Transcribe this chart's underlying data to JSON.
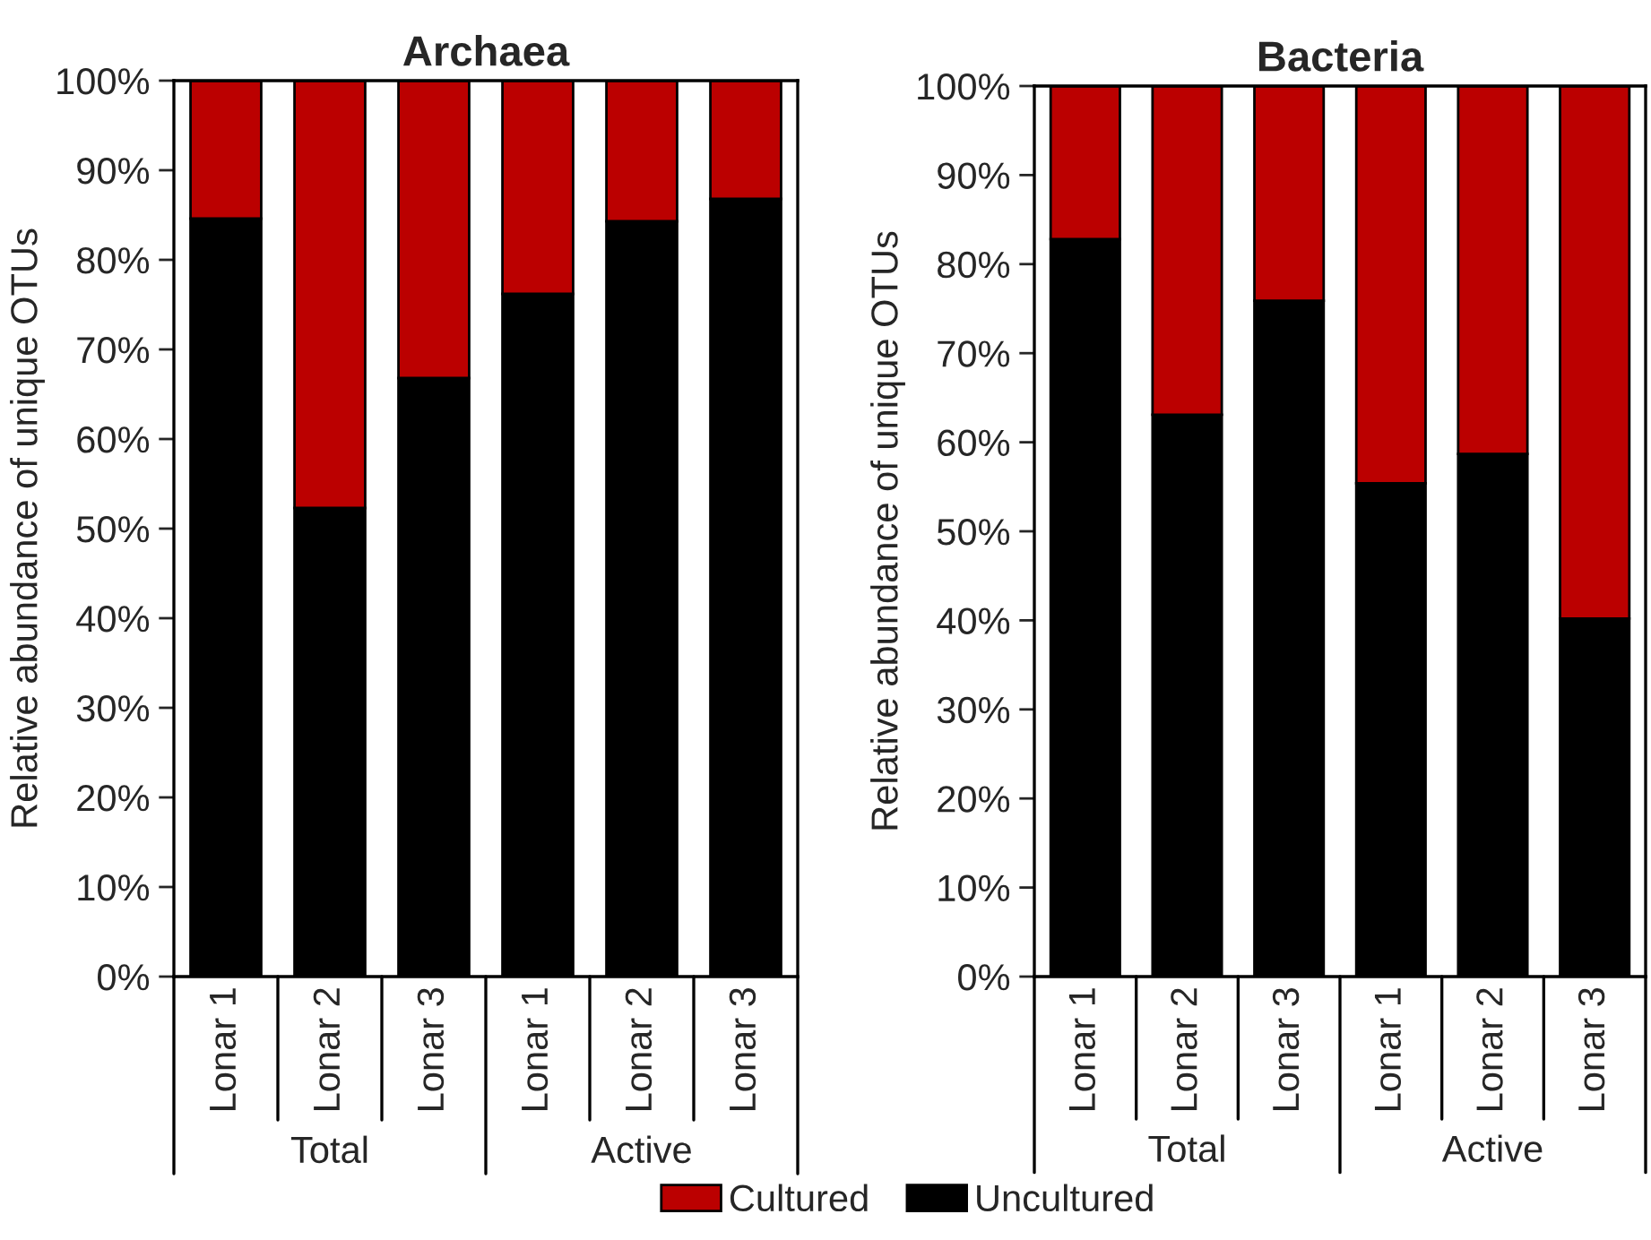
{
  "chart_data": [
    {
      "type": "bar",
      "title": "Archaea",
      "ylabel": "Relative abundance of unique OTUs",
      "stacked": true,
      "grid": false,
      "categories": [
        "Lonar 1",
        "Lonar 2",
        "Lonar 3",
        "Lonar 1",
        "Lonar 2",
        "Lonar 3"
      ],
      "series": [
        {
          "color": "#000000",
          "values": [
            84.6,
            52.3,
            66.8,
            76.2,
            84.3,
            86.8
          ]
        },
        {
          "color": "#bb0000",
          "values": [
            15.4,
            47.7,
            33.2,
            23.8,
            15.7,
            13.2
          ]
        }
      ],
      "ylim": [
        0,
        100
      ],
      "yticks": [
        {
          "value": 0,
          "label": "0%"
        },
        {
          "value": 10,
          "label": "10%"
        },
        {
          "value": 20,
          "label": "20%"
        },
        {
          "value": 30,
          "label": "30%"
        },
        {
          "value": 40,
          "label": "40%"
        },
        {
          "value": 50,
          "label": "50%"
        },
        {
          "value": 60,
          "label": "60%"
        },
        {
          "value": 70,
          "label": "70%"
        },
        {
          "value": 80,
          "label": "80%"
        },
        {
          "value": 90,
          "label": "90%"
        },
        {
          "value": 100,
          "label": "100%"
        }
      ],
      "annotations": [
        "Total",
        "Active"
      ]
    },
    {
      "type": "bar",
      "title": "Bacteria",
      "ylabel": "Relative abundance of unique OTUs",
      "stacked": true,
      "legend": "bottom",
      "grid": false,
      "categories": [
        "Lonar 1",
        "Lonar 2",
        "Lonar 3",
        "Lonar 1",
        "Lonar 2",
        "Lonar 3"
      ],
      "series": [
        {
          "name": "Uncultured",
          "color": "#000000",
          "values": [
            82.8,
            63.1,
            75.9,
            55.4,
            58.7,
            40.2
          ]
        },
        {
          "name": "Cultured",
          "color": "#bb0000",
          "values": [
            17.2,
            36.9,
            24.1,
            44.6,
            41.3,
            59.8
          ]
        }
      ],
      "ylim": [
        0,
        100
      ],
      "yticks": [
        {
          "value": 0,
          "label": "0%"
        },
        {
          "value": 10,
          "label": "10%"
        },
        {
          "value": 20,
          "label": "20%"
        },
        {
          "value": 30,
          "label": "30%"
        },
        {
          "value": 40,
          "label": "40%"
        },
        {
          "value": 50,
          "label": "50%"
        },
        {
          "value": 60,
          "label": "60%"
        },
        {
          "value": 70,
          "label": "70%"
        },
        {
          "value": 80,
          "label": "80%"
        },
        {
          "value": 90,
          "label": "90%"
        },
        {
          "value": 100,
          "label": "100%"
        }
      ],
      "annotations": [
        "Total",
        "Active"
      ]
    }
  ]
}
